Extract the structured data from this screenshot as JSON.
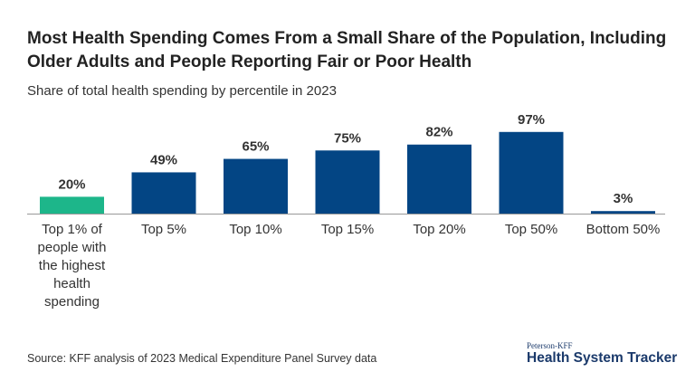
{
  "title": "Most Health Spending Comes From a Small Share of the Population, Including Older Adults and People Reporting Fair or Poor Health",
  "subtitle": "Share of total health spending by percentile in 2023",
  "source": "Source: KFF analysis of 2023 Medical Expenditure Panel Survey data",
  "logo": {
    "top": "Peterson-KFF",
    "main": "Health System Tracker"
  },
  "colors": {
    "highlight": "#1db68a",
    "bar": "#034584"
  },
  "chart_data": {
    "type": "bar",
    "title": "Most Health Spending Comes From a Small Share of the Population, Including Older Adults and People Reporting Fair or Poor Health",
    "subtitle": "Share of total health spending by percentile in 2023",
    "categories": [
      "Top 1% of people with the highest health spending",
      "Top 5%",
      "Top 10%",
      "Top 15%",
      "Top 20%",
      "Top 50%",
      "Bottom 50%"
    ],
    "category_lines": [
      [
        "Top 1% of",
        "people with",
        "the highest",
        "health",
        "spending"
      ],
      [
        "Top 5%"
      ],
      [
        "Top 10%"
      ],
      [
        "Top 15%"
      ],
      [
        "Top 20%"
      ],
      [
        "Top 50%"
      ],
      [
        "Bottom 50%"
      ]
    ],
    "values": [
      20,
      49,
      65,
      75,
      82,
      97,
      3
    ],
    "data_labels": [
      "20%",
      "49%",
      "65%",
      "75%",
      "82%",
      "97%",
      "3%"
    ],
    "highlighted_index": 0,
    "ylim": [
      0,
      100
    ],
    "grid": false,
    "xlabel": "",
    "ylabel": ""
  }
}
